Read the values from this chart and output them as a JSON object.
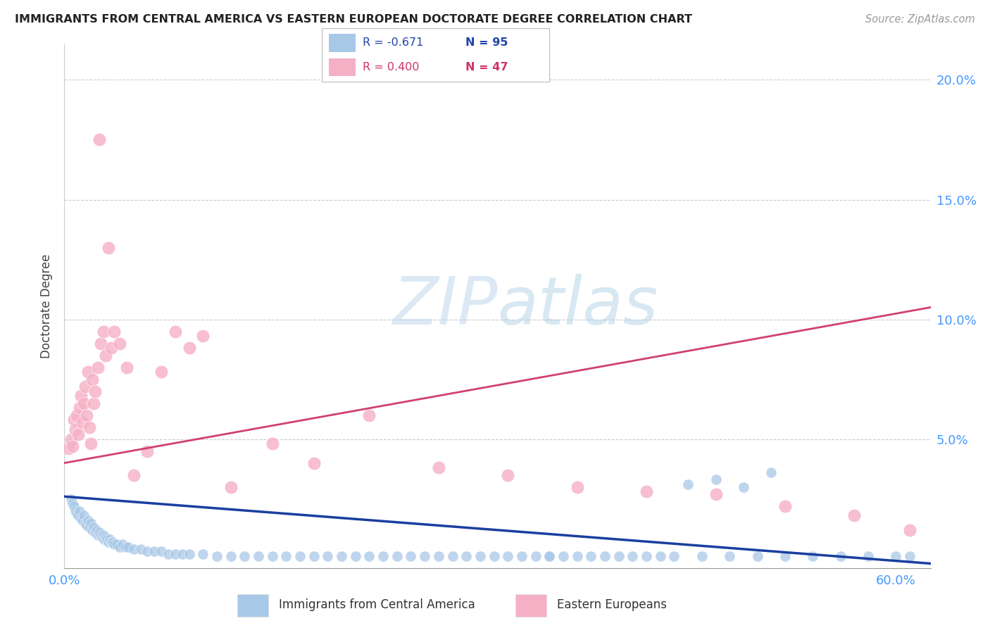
{
  "title": "IMMIGRANTS FROM CENTRAL AMERICA VS EASTERN EUROPEAN DOCTORATE DEGREE CORRELATION CHART",
  "source": "Source: ZipAtlas.com",
  "ylabel": "Doctorate Degree",
  "legend1_label": "Immigrants from Central America",
  "legend1_R": "R = -0.671",
  "legend1_N": "N = 95",
  "legend2_label": "Eastern Europeans",
  "legend2_R": "R = 0.400",
  "legend2_N": "N = 47",
  "blue_color": "#a8c8e8",
  "blue_line_color": "#1a3f9f",
  "pink_color": "#f5b0c5",
  "pink_line_color": "#d04070",
  "xmin": 0.0,
  "xmax": 0.625,
  "ymin": -0.004,
  "ymax": 0.215,
  "ytick_vals": [
    0.0,
    0.05,
    0.1,
    0.15,
    0.2
  ],
  "ytick_labels": [
    "",
    "5.0%",
    "10.0%",
    "15.0%",
    "20.0%"
  ],
  "blue_scatter_x": [
    0.005,
    0.006,
    0.007,
    0.008,
    0.009,
    0.01,
    0.011,
    0.012,
    0.013,
    0.014,
    0.015,
    0.016,
    0.017,
    0.018,
    0.019,
    0.02,
    0.021,
    0.022,
    0.023,
    0.024,
    0.025,
    0.026,
    0.027,
    0.028,
    0.029,
    0.03,
    0.031,
    0.032,
    0.033,
    0.034,
    0.035,
    0.036,
    0.038,
    0.04,
    0.042,
    0.044,
    0.046,
    0.05,
    0.055,
    0.06,
    0.065,
    0.07,
    0.075,
    0.08,
    0.085,
    0.09,
    0.1,
    0.11,
    0.12,
    0.13,
    0.14,
    0.15,
    0.16,
    0.17,
    0.18,
    0.19,
    0.2,
    0.21,
    0.22,
    0.23,
    0.24,
    0.25,
    0.26,
    0.27,
    0.28,
    0.29,
    0.3,
    0.31,
    0.32,
    0.33,
    0.34,
    0.35,
    0.36,
    0.38,
    0.4,
    0.42,
    0.44,
    0.46,
    0.48,
    0.5,
    0.52,
    0.54,
    0.56,
    0.58,
    0.6,
    0.61,
    0.51,
    0.49,
    0.47,
    0.45,
    0.43,
    0.41,
    0.39,
    0.37,
    0.35
  ],
  "blue_scatter_y": [
    0.025,
    0.023,
    0.022,
    0.02,
    0.019,
    0.018,
    0.02,
    0.017,
    0.016,
    0.018,
    0.015,
    0.014,
    0.016,
    0.013,
    0.015,
    0.012,
    0.013,
    0.011,
    0.012,
    0.01,
    0.011,
    0.01,
    0.009,
    0.01,
    0.008,
    0.009,
    0.008,
    0.007,
    0.008,
    0.007,
    0.007,
    0.006,
    0.006,
    0.005,
    0.006,
    0.005,
    0.005,
    0.004,
    0.004,
    0.003,
    0.003,
    0.003,
    0.002,
    0.002,
    0.002,
    0.002,
    0.002,
    0.001,
    0.001,
    0.001,
    0.001,
    0.001,
    0.001,
    0.001,
    0.001,
    0.001,
    0.001,
    0.001,
    0.001,
    0.001,
    0.001,
    0.001,
    0.001,
    0.001,
    0.001,
    0.001,
    0.001,
    0.001,
    0.001,
    0.001,
    0.001,
    0.001,
    0.001,
    0.001,
    0.001,
    0.001,
    0.001,
    0.001,
    0.001,
    0.001,
    0.001,
    0.001,
    0.001,
    0.001,
    0.001,
    0.001,
    0.036,
    0.03,
    0.033,
    0.031,
    0.001,
    0.001,
    0.001,
    0.001,
    0.001
  ],
  "pink_scatter_x": [
    0.003,
    0.005,
    0.006,
    0.007,
    0.008,
    0.009,
    0.01,
    0.011,
    0.012,
    0.013,
    0.014,
    0.015,
    0.016,
    0.017,
    0.018,
    0.019,
    0.02,
    0.021,
    0.022,
    0.024,
    0.025,
    0.026,
    0.028,
    0.03,
    0.032,
    0.034,
    0.036,
    0.04,
    0.045,
    0.05,
    0.06,
    0.07,
    0.08,
    0.09,
    0.1,
    0.12,
    0.15,
    0.18,
    0.22,
    0.27,
    0.32,
    0.37,
    0.42,
    0.47,
    0.52,
    0.57,
    0.61
  ],
  "pink_scatter_y": [
    0.046,
    0.05,
    0.047,
    0.058,
    0.054,
    0.06,
    0.052,
    0.063,
    0.068,
    0.057,
    0.065,
    0.072,
    0.06,
    0.078,
    0.055,
    0.048,
    0.075,
    0.065,
    0.07,
    0.08,
    0.175,
    0.09,
    0.095,
    0.085,
    0.13,
    0.088,
    0.095,
    0.09,
    0.08,
    0.035,
    0.045,
    0.078,
    0.095,
    0.088,
    0.093,
    0.03,
    0.048,
    0.04,
    0.06,
    0.038,
    0.035,
    0.03,
    0.028,
    0.027,
    0.022,
    0.018,
    0.012
  ],
  "blue_line_y0": 0.026,
  "blue_line_y1": -0.002,
  "pink_line_y0": 0.04,
  "pink_line_y1": 0.105
}
